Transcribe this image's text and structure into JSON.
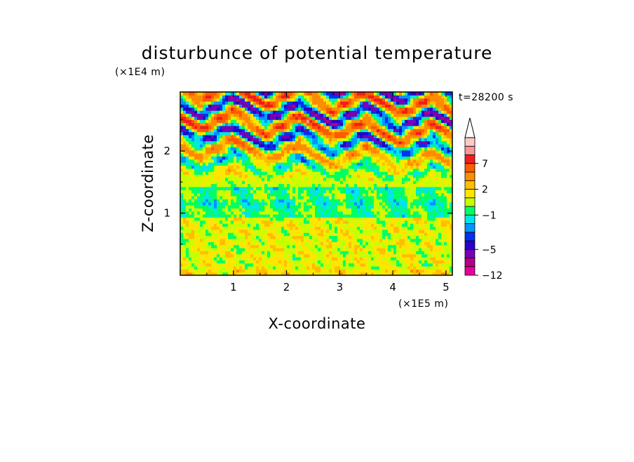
{
  "chart_data": {
    "type": "heatmap",
    "title": "disturbunce of potential temperature",
    "xlabel": "X-coordinate",
    "ylabel": "Z-coordinate",
    "x_unit": "(×1E5 m)",
    "y_unit": "(×1E4 m)",
    "time_label": "t=28200 s",
    "xlim": [
      0,
      5.12
    ],
    "ylim": [
      0,
      2.95
    ],
    "x_ticks": [
      1,
      2,
      3,
      4,
      5
    ],
    "y_ticks": [
      1,
      2
    ],
    "colorbar": {
      "levels": [
        -12,
        -9,
        -7,
        -5,
        -4,
        -3,
        -2,
        -1,
        0,
        1,
        2,
        3,
        5,
        7,
        9,
        11
      ],
      "labels": [
        "-12",
        "-5",
        "-1",
        "2",
        "7"
      ],
      "label_values": [
        -12,
        -5,
        -1,
        2,
        7
      ],
      "colors": [
        "#e6009c",
        "#b4008c",
        "#7800b4",
        "#2800c8",
        "#0032f0",
        "#0096ff",
        "#00e6e6",
        "#00ff64",
        "#c8ff00",
        "#ffe600",
        "#ffbe00",
        "#ff8c00",
        "#ff5a00",
        "#f01e1e",
        "#ff9696",
        "#ffc8c8"
      ],
      "extend_top": true
    },
    "grid": false,
    "field_description_bands": [
      {
        "z_range": [
          0,
          0.95
        ],
        "dominant": "weak positive (yellow/orange)"
      },
      {
        "z_range": [
          0.95,
          1.45
        ],
        "dominant": "near zero / slightly negative (green)"
      },
      {
        "z_range": [
          1.45,
          2.95
        ],
        "dominant": "wave pattern alternating positive (orange/red) and negative (blue)"
      }
    ]
  },
  "colors": {
    "background": "#ffffff",
    "axes": "#000000"
  }
}
